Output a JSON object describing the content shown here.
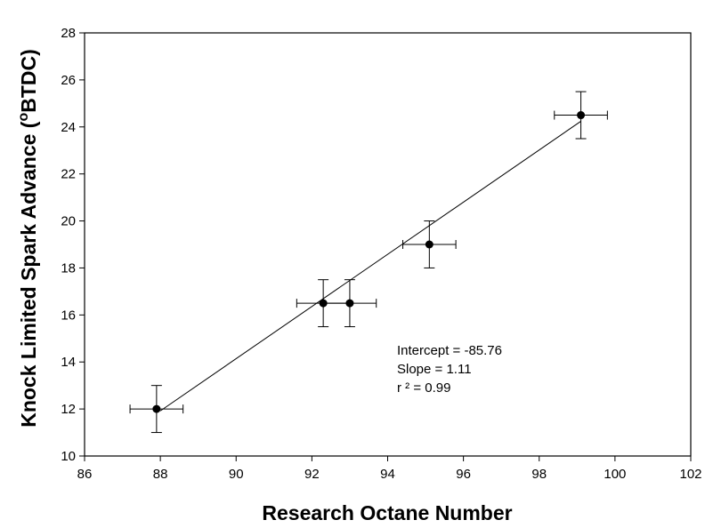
{
  "chart_data": {
    "type": "scatter",
    "xlabel": "Research Octane Number",
    "ylabel_main": "Knock Limited Spark Advance (",
    "ylabel_sup": "o",
    "ylabel_end": "BTDC)",
    "xlim": [
      86,
      102
    ],
    "ylim": [
      10,
      28
    ],
    "xticks": [
      86,
      88,
      90,
      92,
      94,
      96,
      98,
      100,
      102
    ],
    "yticks": [
      10,
      12,
      14,
      16,
      18,
      20,
      22,
      24,
      26,
      28
    ],
    "grid": false,
    "points": [
      {
        "x": 87.9,
        "y": 12.0,
        "xerr": 0.7,
        "yerr": 1.0
      },
      {
        "x": 92.3,
        "y": 16.5,
        "xerr": 0.7,
        "yerr": 1.0
      },
      {
        "x": 93.0,
        "y": 16.5,
        "xerr": 0.7,
        "yerr": 1.0
      },
      {
        "x": 95.1,
        "y": 19.0,
        "xerr": 0.7,
        "yerr": 1.0
      },
      {
        "x": 99.1,
        "y": 24.5,
        "xerr": 0.7,
        "yerr": 1.0
      }
    ],
    "fit_line": {
      "x": [
        88,
        99.1
      ],
      "intercept": -85.76,
      "slope": 1.11
    },
    "annotations": {
      "intercept": "Intercept = -85.76",
      "slope": "Slope = 1.11",
      "r2": "r ²  = 0.99"
    }
  }
}
